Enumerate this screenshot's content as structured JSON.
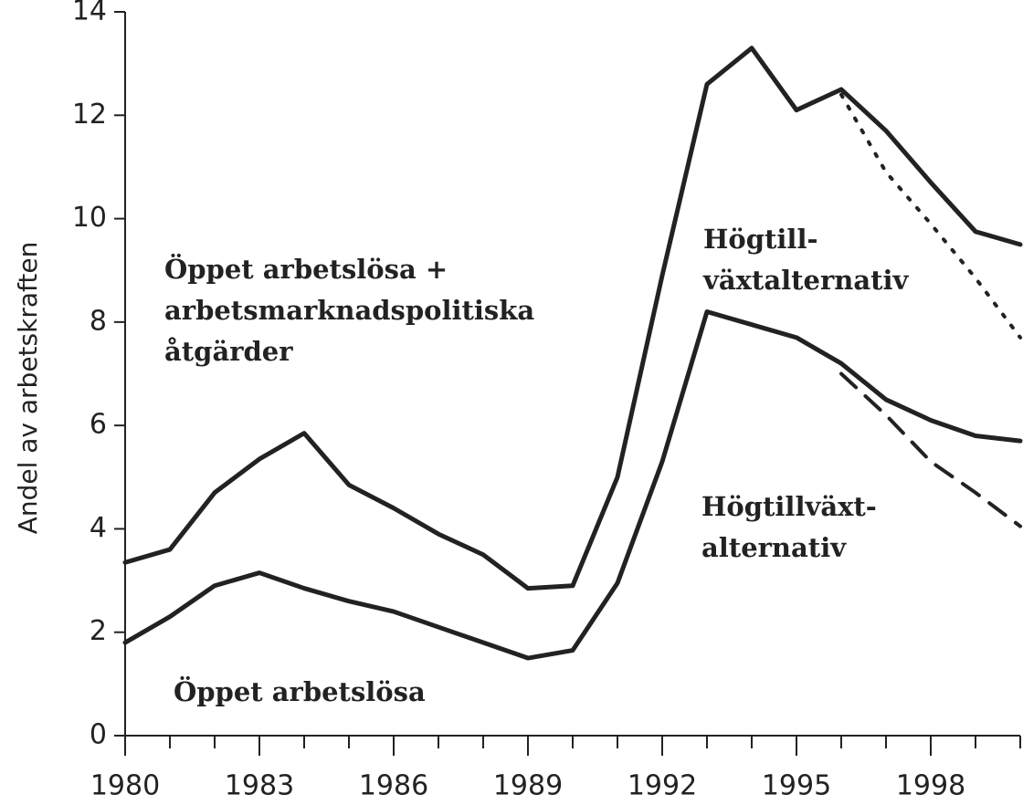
{
  "chart_data": {
    "type": "line",
    "y_label": "Andel av arbetskraften",
    "x": [
      1980,
      1981,
      1982,
      1983,
      1984,
      1985,
      1986,
      1987,
      1988,
      1989,
      1990,
      1991,
      1992,
      1993,
      1994,
      1995,
      1996,
      1997,
      1998,
      1999,
      2000
    ],
    "series": [
      {
        "color": "#222222",
        "style": "solid",
        "values": [
          3.35,
          3.6,
          4.7,
          5.35,
          5.85,
          4.85,
          4.4,
          3.9,
          3.5,
          2.85,
          2.9,
          5.0,
          8.9,
          12.6,
          13.3,
          12.1,
          12.5,
          11.7,
          10.7,
          9.75,
          9.5
        ]
      },
      {
        "color": "#222222",
        "style": "solid",
        "values": [
          1.8,
          2.3,
          2.9,
          3.15,
          2.85,
          2.6,
          2.4,
          2.1,
          1.8,
          1.5,
          1.65,
          2.95,
          5.3,
          8.2,
          7.95,
          7.7,
          7.2,
          6.5,
          6.1,
          5.8,
          5.7
        ]
      },
      {
        "color": "#222222",
        "style": "dotted",
        "values": [
          null,
          null,
          null,
          null,
          null,
          null,
          null,
          null,
          null,
          null,
          null,
          null,
          null,
          null,
          null,
          null,
          12.4,
          10.9,
          9.9,
          8.85,
          7.7
        ]
      },
      {
        "color": "#222222",
        "style": "dashed",
        "values": [
          null,
          null,
          null,
          null,
          null,
          null,
          null,
          null,
          null,
          null,
          null,
          null,
          null,
          null,
          null,
          null,
          7.0,
          6.2,
          5.3,
          4.7,
          4.05
        ]
      }
    ],
    "annotations": [
      {
        "lines": [
          "Öppet arbetslösa +",
          "arbetsmarknadspolitiska",
          "åtgärder"
        ]
      },
      {
        "lines": [
          "Högtill-",
          "växtalternativ"
        ]
      },
      {
        "lines": [
          "Högtillväxt-",
          "alternativ"
        ]
      },
      {
        "lines": [
          "Öppet arbetslösa"
        ]
      }
    ],
    "xlim": [
      1980,
      2000
    ],
    "xticks": [
      1980,
      1983,
      1986,
      1989,
      1992,
      1995,
      1998
    ],
    "x_minor_ticks": [
      1980,
      1981,
      1982,
      1983,
      1984,
      1985,
      1986,
      1987,
      1988,
      1989,
      1990,
      1991,
      1992,
      1993,
      1994,
      1995,
      1996,
      1997,
      1998,
      1999,
      2000
    ],
    "ylim": [
      0,
      14
    ],
    "yticks": [
      0,
      2,
      4,
      6,
      8,
      10,
      12,
      14
    ],
    "grid": false
  }
}
